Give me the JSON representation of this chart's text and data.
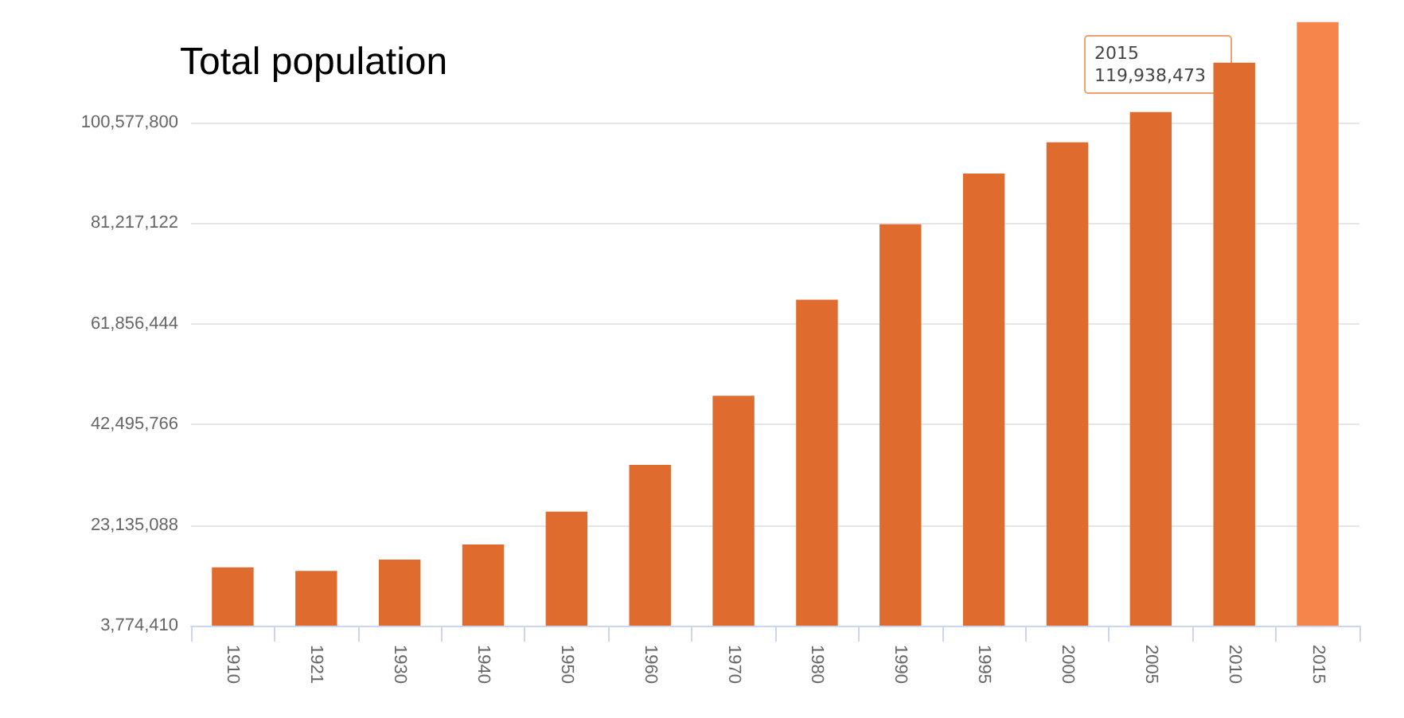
{
  "chart_data": {
    "type": "bar",
    "title": "Total population",
    "categories": [
      "1910",
      "1921",
      "1930",
      "1940",
      "1950",
      "1960",
      "1970",
      "1980",
      "1990",
      "1995",
      "2000",
      "2005",
      "2010",
      "2015"
    ],
    "values": [
      15000000,
      14300000,
      16500000,
      19400000,
      25700000,
      34700000,
      48000000,
      66500000,
      81000000,
      90800000,
      96800000,
      102600000,
      112100000,
      119938473
    ],
    "colors": [
      "#e06b2f",
      "#e06b2f",
      "#e06b2f",
      "#e06b2f",
      "#e06b2f",
      "#e06b2f",
      "#e06b2f",
      "#e06b2f",
      "#e06b2f",
      "#e06b2f",
      "#e06b2f",
      "#e06b2f",
      "#e06b2f",
      "#f5854b"
    ],
    "ylim": [
      3774410,
      120500000
    ],
    "yticks": [
      {
        "value": 3774410,
        "label": "3,774,410"
      },
      {
        "value": 23135088,
        "label": "23,135,088"
      },
      {
        "value": 42495766,
        "label": "42,495,766"
      },
      {
        "value": 61856444,
        "label": "61,856,444"
      },
      {
        "value": 81217122,
        "label": "81,217,122"
      },
      {
        "value": 100577800,
        "label": "100,577,800"
      }
    ],
    "grid": "y",
    "annotations": [
      "2015\n119,938,473"
    ]
  }
}
